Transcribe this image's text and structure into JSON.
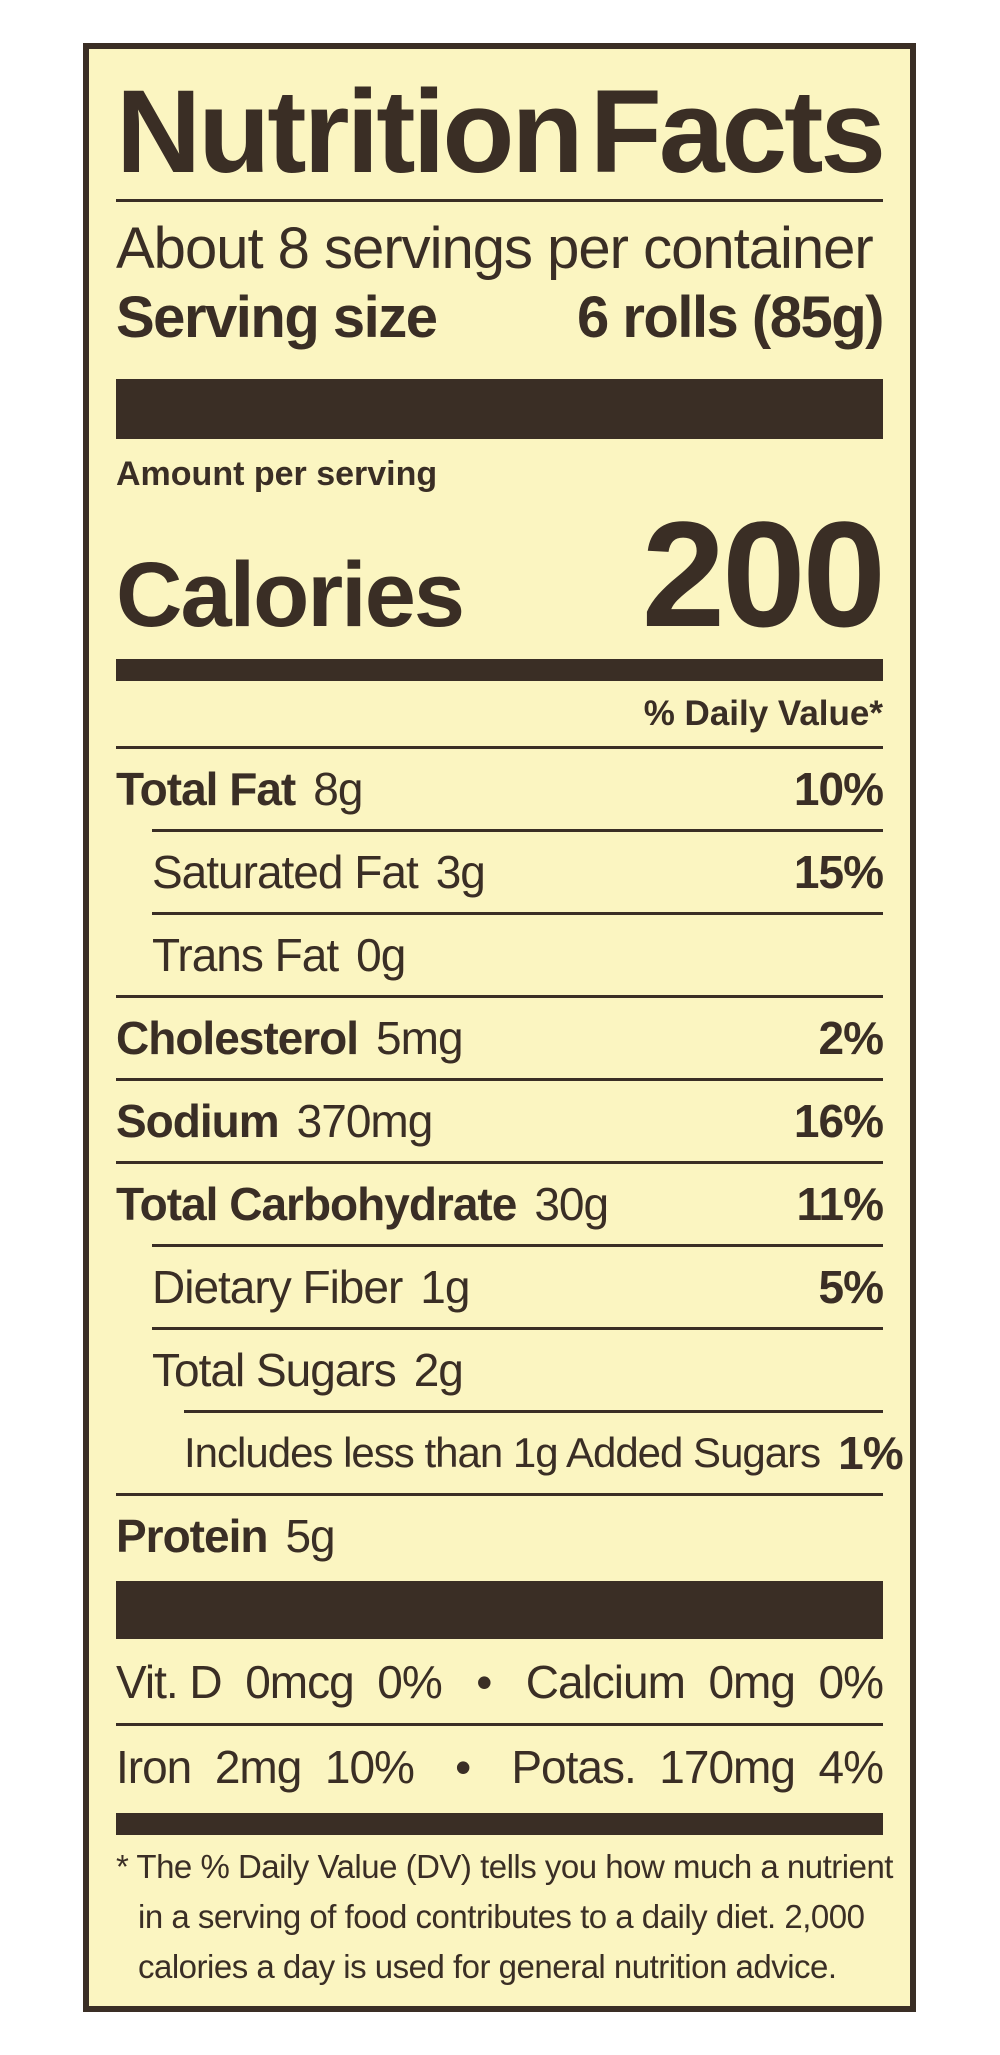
{
  "title_left": "Nutrition",
  "title_right": "Facts",
  "servings_per_container": "About 8 servings per container",
  "serving_size_label": "Serving size",
  "serving_size_value": "6 rolls (85g)",
  "amount_per_serving": "Amount per serving",
  "calories_label": "Calories",
  "calories_value": "200",
  "daily_value_header": "% Daily Value*",
  "nutrients": [
    {
      "name": "Total Fat",
      "amount": "8g",
      "dv": "10%"
    },
    {
      "name": "Saturated Fat",
      "amount": "3g",
      "dv": "15%"
    },
    {
      "name": "Trans Fat",
      "amount": "0g",
      "dv": ""
    },
    {
      "name": "Cholesterol",
      "amount": "5mg",
      "dv": "2%"
    },
    {
      "name": "Sodium",
      "amount": "370mg",
      "dv": "16%"
    },
    {
      "name": "Total Carbohydrate",
      "amount": "30g",
      "dv": "11%"
    },
    {
      "name": "Dietary Fiber",
      "amount": "1g",
      "dv": "5%"
    },
    {
      "name": "Total Sugars",
      "amount": "2g",
      "dv": ""
    },
    {
      "name": "Includes less than 1g Added Sugars",
      "amount": "",
      "dv": "1%"
    },
    {
      "name": "Protein",
      "amount": "5g",
      "dv": ""
    }
  ],
  "vitamins": [
    {
      "left": "Vit. D  0mcg  0%",
      "bullet": "•",
      "right": "Calcium  0mg  0%"
    },
    {
      "left": "Iron  2mg  10%",
      "bullet": "•",
      "right": "Potas.  170mg  4%"
    }
  ],
  "footnote": [
    "* The % Daily Value (DV) tells you how much a nutrient",
    "in a serving of food contributes to a daily diet. 2,000",
    "calories a day is used for general nutrition advice."
  ],
  "colors": {
    "background": "#fbf5c1",
    "ink": "#3a2e25"
  }
}
